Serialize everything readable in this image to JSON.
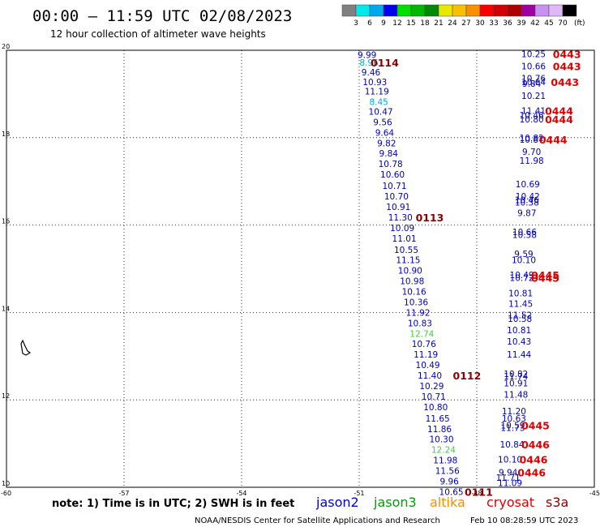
{
  "header": {
    "title": "00:00 – 11:59 UTC 02/08/2023",
    "subtitle": "12 hour collection of altimeter wave heights"
  },
  "colorbar": {
    "unit": "(ft)",
    "labels": [
      "3",
      "6",
      "9",
      "12",
      "15",
      "18",
      "21",
      "24",
      "27",
      "30",
      "33",
      "36",
      "39",
      "42",
      "45",
      "70"
    ],
    "colors": [
      "#808080",
      "#00e8e8",
      "#00a8f0",
      "#0000f0",
      "#00e000",
      "#00b800",
      "#008800",
      "#e8e800",
      "#f8c000",
      "#f89000",
      "#f80000",
      "#d00000",
      "#b00000",
      "#a000a0",
      "#c890f0",
      "#e0b8f8",
      "#000000"
    ]
  },
  "footer": {
    "note": "note:  1) Time is in UTC; 2) SWH is in feet",
    "credit": "NOAA/NESDIS Center for Satellite Applications and Research",
    "timestamp": "Feb 10 08:28:59 UTC 2023",
    "satellites": [
      {
        "name": "jason2",
        "color": "#0000e0"
      },
      {
        "name": "jason3",
        "color": "#00a000"
      },
      {
        "name": "altika",
        "color": "#ff8c00"
      },
      {
        "name": "cryosat",
        "color": "#e00000"
      },
      {
        "name": "s3a",
        "color": "#8b0000"
      }
    ]
  },
  "chart_data": {
    "type": "scatter",
    "xlim": [
      -60,
      -45
    ],
    "ylim": [
      10,
      20
    ],
    "xticks": [
      "-60",
      "-57",
      "-54",
      "-51",
      "-48",
      "-45"
    ],
    "yticks": [
      "10",
      "12",
      "14",
      "16",
      "18",
      "20"
    ],
    "grid": true,
    "series": [
      {
        "name": "track-west",
        "points": [
          {
            "x": -50.8,
            "y": 19.9,
            "v": "9.99",
            "c": "#0000c0"
          },
          {
            "x": -50.75,
            "y": 19.72,
            "v": "8.96",
            "c": "#00a8d8"
          },
          {
            "x": -50.7,
            "y": 19.5,
            "v": "9.46",
            "c": "#0000c0"
          },
          {
            "x": -50.6,
            "y": 19.28,
            "v": "10.93",
            "c": "#0000c0"
          },
          {
            "x": -50.55,
            "y": 19.06,
            "v": "11.19",
            "c": "#0000c0"
          },
          {
            "x": -50.5,
            "y": 18.82,
            "v": "8.45",
            "c": "#00a8d8"
          },
          {
            "x": -50.45,
            "y": 18.6,
            "v": "10.47",
            "c": "#0000c0"
          },
          {
            "x": -50.4,
            "y": 18.36,
            "v": "9.56",
            "c": "#0000c0"
          },
          {
            "x": -50.35,
            "y": 18.12,
            "v": "9.64",
            "c": "#0000c0"
          },
          {
            "x": -50.3,
            "y": 17.88,
            "v": "9.82",
            "c": "#0000c0"
          },
          {
            "x": -50.25,
            "y": 17.64,
            "v": "9.84",
            "c": "#0000c0"
          },
          {
            "x": -50.2,
            "y": 17.4,
            "v": "10.78",
            "c": "#0000c0"
          },
          {
            "x": -50.15,
            "y": 17.16,
            "v": "10.60",
            "c": "#0000c0"
          },
          {
            "x": -50.1,
            "y": 16.9,
            "v": "10.71",
            "c": "#0000c0"
          },
          {
            "x": -50.05,
            "y": 16.66,
            "v": "10.70",
            "c": "#0000c0"
          },
          {
            "x": -50.0,
            "y": 16.42,
            "v": "10.91",
            "c": "#0000c0"
          },
          {
            "x": -49.95,
            "y": 16.18,
            "v": "11.30",
            "c": "#0000c0"
          },
          {
            "x": -49.9,
            "y": 15.94,
            "v": "10.09",
            "c": "#0000c0"
          },
          {
            "x": -49.85,
            "y": 15.7,
            "v": "11.01",
            "c": "#0000c0"
          },
          {
            "x": -49.8,
            "y": 15.44,
            "v": "10.55",
            "c": "#0000c0"
          },
          {
            "x": -49.75,
            "y": 15.2,
            "v": "11.15",
            "c": "#0000c0"
          },
          {
            "x": -49.7,
            "y": 14.96,
            "v": "10.90",
            "c": "#0000c0"
          },
          {
            "x": -49.65,
            "y": 14.72,
            "v": "10.98",
            "c": "#0000c0"
          },
          {
            "x": -49.6,
            "y": 14.48,
            "v": "10.16",
            "c": "#0000c0"
          },
          {
            "x": -49.55,
            "y": 14.24,
            "v": "10.36",
            "c": "#0000c0"
          },
          {
            "x": -49.5,
            "y": 14.0,
            "v": "11.92",
            "c": "#0000c0"
          },
          {
            "x": -49.45,
            "y": 13.76,
            "v": "10.83",
            "c": "#0000c0"
          },
          {
            "x": -49.4,
            "y": 13.52,
            "v": "12.74",
            "c": "#40d040"
          },
          {
            "x": -49.35,
            "y": 13.28,
            "v": "10.76",
            "c": "#0000c0"
          },
          {
            "x": -49.3,
            "y": 13.04,
            "v": "11.19",
            "c": "#0000c0"
          },
          {
            "x": -49.25,
            "y": 12.8,
            "v": "10.49",
            "c": "#0000c0"
          },
          {
            "x": -49.2,
            "y": 12.56,
            "v": "11.40",
            "c": "#0000c0"
          },
          {
            "x": -49.15,
            "y": 12.32,
            "v": "10.29",
            "c": "#0000c0"
          },
          {
            "x": -49.1,
            "y": 12.08,
            "v": "10.71",
            "c": "#0000c0"
          },
          {
            "x": -49.05,
            "y": 11.84,
            "v": "10.80",
            "c": "#0000c0"
          },
          {
            "x": -49.0,
            "y": 11.58,
            "v": "11.65",
            "c": "#0000c0"
          },
          {
            "x": -48.95,
            "y": 11.34,
            "v": "11.86",
            "c": "#0000c0"
          },
          {
            "x": -48.9,
            "y": 11.1,
            "v": "10.30",
            "c": "#0000c0"
          },
          {
            "x": -48.85,
            "y": 10.86,
            "v": "12.24",
            "c": "#40d040"
          },
          {
            "x": -48.8,
            "y": 10.62,
            "v": "11.98",
            "c": "#0000c0"
          },
          {
            "x": -48.75,
            "y": 10.38,
            "v": "11.56",
            "c": "#0000c0"
          },
          {
            "x": -48.7,
            "y": 10.14,
            "v": "9.96",
            "c": "#0000c0"
          },
          {
            "x": -48.65,
            "y": 9.9,
            "v": "10.65",
            "c": "#0000c0"
          }
        ]
      },
      {
        "name": "track-east",
        "points": [
          {
            "x": -46.55,
            "y": 19.92,
            "v": "10.25",
            "c": "#0000c0"
          },
          {
            "x": -46.55,
            "y": 19.64,
            "v": "10.66",
            "c": "#0000c0"
          },
          {
            "x": -46.55,
            "y": 19.36,
            "v": "10.76",
            "c": "#0000c0"
          },
          {
            "x": -46.55,
            "y": 19.28,
            "v": "10.64",
            "c": "#0000c0"
          },
          {
            "x": -46.6,
            "y": 19.24,
            "v": "9.84",
            "c": "#0000c0"
          },
          {
            "x": -46.55,
            "y": 18.96,
            "v": "10.21",
            "c": "#0000c0"
          },
          {
            "x": -46.55,
            "y": 18.62,
            "v": "11.41",
            "c": "#0000c0"
          },
          {
            "x": -46.6,
            "y": 18.52,
            "v": "10.46",
            "c": "#0000c0"
          },
          {
            "x": -46.6,
            "y": 18.42,
            "v": "10.80",
            "c": "#0000c0"
          },
          {
            "x": -46.6,
            "y": 18.0,
            "v": "10.82",
            "c": "#0000c0"
          },
          {
            "x": -46.6,
            "y": 17.96,
            "v": "10.87",
            "c": "#0000c0"
          },
          {
            "x": -46.6,
            "y": 17.68,
            "v": "9.70",
            "c": "#0000c0"
          },
          {
            "x": -46.6,
            "y": 17.48,
            "v": "11.98",
            "c": "#0000c0"
          },
          {
            "x": -46.7,
            "y": 16.94,
            "v": "10.69",
            "c": "#0000c0"
          },
          {
            "x": -46.7,
            "y": 16.66,
            "v": "10.42",
            "c": "#0000c0"
          },
          {
            "x": -46.72,
            "y": 16.58,
            "v": "10.46",
            "c": "#0000c0"
          },
          {
            "x": -46.72,
            "y": 16.52,
            "v": "10.38",
            "c": "#0000c0"
          },
          {
            "x": -46.72,
            "y": 16.28,
            "v": "9.87",
            "c": "#0000c0"
          },
          {
            "x": -46.78,
            "y": 15.84,
            "v": "10.66",
            "c": "#0000c0"
          },
          {
            "x": -46.78,
            "y": 15.78,
            "v": "10.58",
            "c": "#0000c0"
          },
          {
            "x": -46.8,
            "y": 15.34,
            "v": "9.59",
            "c": "#0000c0"
          },
          {
            "x": -46.8,
            "y": 15.2,
            "v": "10.10",
            "c": "#0000c0"
          },
          {
            "x": -46.85,
            "y": 14.86,
            "v": "10.49",
            "c": "#0000c0"
          },
          {
            "x": -46.85,
            "y": 14.8,
            "v": "10.72",
            "c": "#0000c0"
          },
          {
            "x": -46.88,
            "y": 14.44,
            "v": "10.81",
            "c": "#0000c0"
          },
          {
            "x": -46.88,
            "y": 14.2,
            "v": "11.45",
            "c": "#0000c0"
          },
          {
            "x": -46.9,
            "y": 13.94,
            "v": "11.52",
            "c": "#0000c0"
          },
          {
            "x": -46.9,
            "y": 13.86,
            "v": "10.58",
            "c": "#0000c0"
          },
          {
            "x": -46.92,
            "y": 13.6,
            "v": "10.81",
            "c": "#0000c0"
          },
          {
            "x": -46.92,
            "y": 13.34,
            "v": "10.43",
            "c": "#0000c0"
          },
          {
            "x": -46.92,
            "y": 13.04,
            "v": "11.44",
            "c": "#0000c0"
          },
          {
            "x": -47.0,
            "y": 12.6,
            "v": "10.82",
            "c": "#0000c0"
          },
          {
            "x": -47.0,
            "y": 12.54,
            "v": "11.74",
            "c": "#0000c0"
          },
          {
            "x": -47.0,
            "y": 12.38,
            "v": "10.91",
            "c": "#0000c0"
          },
          {
            "x": -47.0,
            "y": 12.12,
            "v": "11.48",
            "c": "#0000c0"
          },
          {
            "x": -47.05,
            "y": 11.74,
            "v": "11.20",
            "c": "#0000c0"
          },
          {
            "x": -47.05,
            "y": 11.58,
            "v": "10.63",
            "c": "#0000c0"
          },
          {
            "x": -47.08,
            "y": 11.42,
            "v": "10.59",
            "c": "#0000c0"
          },
          {
            "x": -47.08,
            "y": 11.36,
            "v": "11.73",
            "c": "#0000c0"
          },
          {
            "x": -47.1,
            "y": 10.98,
            "v": "10.84",
            "c": "#0000c0"
          },
          {
            "x": -47.15,
            "y": 10.64,
            "v": "10.10",
            "c": "#0000c0"
          },
          {
            "x": -47.2,
            "y": 10.34,
            "v": "9.94",
            "c": "#0000c0"
          },
          {
            "x": -47.2,
            "y": 10.22,
            "v": "11.71",
            "c": "#0000c0"
          },
          {
            "x": -47.15,
            "y": 10.1,
            "v": "11.09",
            "c": "#0000c0"
          }
        ]
      }
    ],
    "annotations": [
      {
        "x": -50.35,
        "y": 19.72,
        "text": "0114",
        "c": "#8b0000"
      },
      {
        "x": -49.2,
        "y": 16.18,
        "text": "0113",
        "c": "#8b0000"
      },
      {
        "x": -48.25,
        "y": 12.56,
        "text": "0112",
        "c": "#8b0000"
      },
      {
        "x": -47.95,
        "y": 9.9,
        "text": "0111",
        "c": "#8b0000"
      },
      {
        "x": -45.7,
        "y": 19.92,
        "text": "0443",
        "c": "#e00000"
      },
      {
        "x": -45.7,
        "y": 19.64,
        "text": "0443",
        "c": "#e00000"
      },
      {
        "x": -45.75,
        "y": 19.28,
        "text": "0443",
        "c": "#e00000"
      },
      {
        "x": -45.9,
        "y": 18.62,
        "text": "0444",
        "c": "#e00000"
      },
      {
        "x": -45.9,
        "y": 18.42,
        "text": "0444",
        "c": "#e00000"
      },
      {
        "x": -46.05,
        "y": 17.96,
        "text": "0444",
        "c": "#e00000"
      },
      {
        "x": -46.25,
        "y": 14.86,
        "text": "0445",
        "c": "#e00000"
      },
      {
        "x": -46.25,
        "y": 14.8,
        "text": "0445",
        "c": "#e00000"
      },
      {
        "x": -46.5,
        "y": 11.42,
        "text": "0445",
        "c": "#e00000"
      },
      {
        "x": -46.5,
        "y": 10.98,
        "text": "0446",
        "c": "#e00000"
      },
      {
        "x": -46.55,
        "y": 10.64,
        "text": "0446",
        "c": "#e00000"
      },
      {
        "x": -46.6,
        "y": 10.34,
        "text": "0446",
        "c": "#e00000"
      }
    ]
  }
}
